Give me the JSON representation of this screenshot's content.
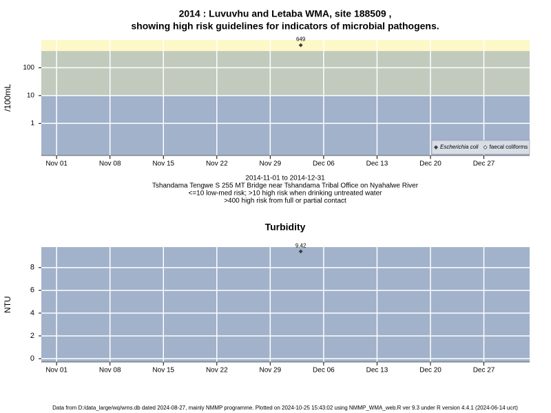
{
  "title_lines": [
    "2014 : Luvuvhu and Letaba WMA, site 188509 ,",
    "showing high risk guidelines for indicators of microbial pathogens."
  ],
  "footer": "Data from D:/data_large/wq/wms.db dated 2024-08-27, mainly NMMP programme. Plotted on 2024-10-25 15:43:02 using NMMP_WMA_web.R ver 9.3 under R version 4.4.1 (2024-06-14 ucrt)",
  "chart_data": [
    {
      "type": "scatter",
      "ylabel": "/100mL",
      "log_y": true,
      "x": [
        "2014-12-03"
      ],
      "series": [
        {
          "name": "Escherichia coli",
          "color": "#404040",
          "values": [
            649
          ]
        },
        {
          "name": "faecal coliforms",
          "color": "#404040",
          "values": [
            null
          ]
        }
      ],
      "xlim": [
        "2014-10-30",
        "2015-01-02"
      ],
      "xticks": [
        {
          "value": "2014-11-01",
          "label": "Nov 01"
        },
        {
          "value": "2014-11-08",
          "label": "Nov 08"
        },
        {
          "value": "2014-11-15",
          "label": "Nov 15"
        },
        {
          "value": "2014-11-22",
          "label": "Nov 22"
        },
        {
          "value": "2014-11-29",
          "label": "Nov 29"
        },
        {
          "value": "2014-12-06",
          "label": "Dec 06"
        },
        {
          "value": "2014-12-13",
          "label": "Dec 13"
        },
        {
          "value": "2014-12-20",
          "label": "Dec 20"
        },
        {
          "value": "2014-12-27",
          "label": "Dec 27"
        }
      ],
      "ylim": [
        0.07,
        1000
      ],
      "yticks": [
        1,
        10,
        100
      ],
      "thresholds": [
        10,
        400
      ],
      "band_colors": [
        "#a2b2cb",
        "#c2cabd",
        "#fdf8c8"
      ],
      "grid": true,
      "legend": "bottom-right",
      "notes": [
        "2014-11-01 to 2014-12-31",
        "Tshandama Tengwe S 255 MT Bridge near Tshandama Tribal Office on Nyahalwe River",
        "<=10 low-med risk; >10 high risk when drinking untreated water",
        ">400 high risk from full or partial contact"
      ]
    },
    {
      "type": "scatter",
      "title": "Turbidity",
      "ylabel": "NTU",
      "x": [
        "2014-12-03"
      ],
      "series": [
        {
          "name": "Turbidity",
          "color": "#404040",
          "values": [
            9.42
          ]
        }
      ],
      "xlim": [
        "2014-10-30",
        "2015-01-02"
      ],
      "xticks": [
        {
          "value": "2014-11-01",
          "label": "Nov 01"
        },
        {
          "value": "2014-11-08",
          "label": "Nov 08"
        },
        {
          "value": "2014-11-15",
          "label": "Nov 15"
        },
        {
          "value": "2014-11-22",
          "label": "Nov 22"
        },
        {
          "value": "2014-11-29",
          "label": "Nov 29"
        },
        {
          "value": "2014-12-06",
          "label": "Dec 06"
        },
        {
          "value": "2014-12-13",
          "label": "Dec 13"
        },
        {
          "value": "2014-12-20",
          "label": "Dec 20"
        },
        {
          "value": "2014-12-27",
          "label": "Dec 27"
        }
      ],
      "ylim": [
        -0.3,
        9.8
      ],
      "yticks": [
        0,
        2,
        4,
        6,
        8
      ],
      "band_colors": [
        "#a2b2cb"
      ],
      "grid": true
    }
  ]
}
